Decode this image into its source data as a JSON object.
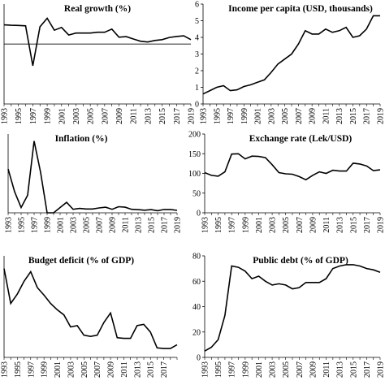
{
  "chart_data": [
    {
      "type": "line",
      "title": "Real growth (%)",
      "color": "#000000",
      "categories": [
        "1993",
        null,
        "1995",
        null,
        "1997",
        null,
        "1999",
        null,
        "2001",
        null,
        "2003",
        null,
        "2005",
        null,
        "2007",
        null,
        "2009",
        null,
        "2011",
        null,
        "2013",
        null,
        "2015",
        null,
        "2017",
        null,
        "2019"
      ],
      "values": [
        9.6,
        9.4,
        9.3,
        9.1,
        -10.9,
        8.6,
        12.9,
        6.9,
        8.3,
        4.5,
        5.5,
        5.5,
        5.5,
        5.9,
        5.9,
        7.5,
        3.4,
        3.7,
        2.5,
        1.4,
        1.0,
        1.8,
        2.2,
        3.3,
        3.8,
        4.1,
        2.2
      ],
      "ylim": [
        -30,
        20
      ]
    },
    {
      "type": "line",
      "title": "Income per capita (USD, thousands)",
      "color": "#000000",
      "categories": [
        "1993",
        null,
        "1995",
        null,
        "1997",
        null,
        "1999",
        null,
        "2001",
        null,
        "2003",
        null,
        "2005",
        null,
        "2007",
        null,
        "2009",
        null,
        "2011",
        null,
        "2013",
        null,
        "2015",
        null,
        "2017",
        null,
        "2019"
      ],
      "values": [
        0.6,
        0.8,
        1.0,
        1.1,
        0.8,
        0.85,
        1.05,
        1.15,
        1.3,
        1.45,
        1.9,
        2.4,
        2.7,
        3.0,
        3.6,
        4.4,
        4.2,
        4.2,
        4.5,
        4.3,
        4.4,
        4.6,
        4.0,
        4.1,
        4.5,
        5.3,
        5.3
      ],
      "ylim": [
        0,
        6
      ],
      "yticks": [
        0,
        1,
        2,
        3,
        4,
        5,
        6
      ]
    },
    {
      "type": "line",
      "title": "Inflation (%)",
      "color": "#000000",
      "categories": [
        "1993",
        null,
        "1995",
        null,
        "1997",
        null,
        "1999",
        null,
        "2001",
        null,
        "2003",
        null,
        "2005",
        null,
        "2007",
        null,
        "2009",
        null,
        "2011",
        null,
        "2013",
        null,
        "2015",
        null,
        "2017",
        null,
        "2019"
      ],
      "values": [
        25,
        12,
        3,
        10,
        41,
        23,
        0,
        0,
        3,
        6,
        2,
        2.5,
        2.2,
        2.2,
        2.8,
        3.2,
        2,
        3.5,
        3.2,
        2,
        1.8,
        1.5,
        1.8,
        1.2,
        1.9,
        1.9,
        1.4
      ],
      "ylim": [
        0,
        45
      ]
    },
    {
      "type": "line",
      "title": "Exchange rate (Lek/USD)",
      "color": "#000000",
      "categories": [
        "1993",
        null,
        "1995",
        null,
        "1997",
        null,
        "1999",
        null,
        "2001",
        null,
        "2003",
        null,
        "2005",
        null,
        "2007",
        null,
        "2009",
        null,
        "2011",
        null,
        "2013",
        null,
        "2015",
        null,
        "2017",
        null,
        "2019"
      ],
      "values": [
        102,
        95,
        93,
        104,
        149,
        150,
        137,
        144,
        143,
        140,
        122,
        102,
        99,
        98,
        92,
        84,
        95,
        104,
        100,
        108,
        106,
        106,
        126,
        124,
        119,
        107,
        109
      ],
      "ylim": [
        0,
        200
      ],
      "yticks": [
        0,
        50,
        100,
        150,
        200
      ]
    },
    {
      "type": "line",
      "title": "Budget deficit (% of GDP)",
      "color": "#000000",
      "categories": [
        "1993",
        null,
        "1995",
        null,
        "1997",
        null,
        "1999",
        null,
        "2001",
        null,
        "2003",
        null,
        "2005",
        null,
        "2007",
        null,
        "2009",
        null,
        "2011",
        null,
        "2013",
        null,
        "2015",
        null,
        "2017",
        null,
        null
      ],
      "values": [
        14,
        8.5,
        10,
        12,
        13.5,
        11,
        9.8,
        8.5,
        7.5,
        6.7,
        4.8,
        5.0,
        3.5,
        3.3,
        3.5,
        5.5,
        7.0,
        3.1,
        3.0,
        3.0,
        5.0,
        5.2,
        4.0,
        1.5,
        1.4,
        1.4,
        2.0
      ],
      "ylim": [
        0,
        16
      ]
    },
    {
      "type": "line",
      "title": "Public debt (% of GDP)",
      "color": "#000000",
      "categories": [
        "1993",
        null,
        "1995",
        null,
        "1997",
        null,
        "1999",
        null,
        "2001",
        null,
        "2003",
        null,
        "2005",
        null,
        "2007",
        null,
        "2009",
        null,
        "2011",
        null,
        "2013",
        null,
        "2015",
        null,
        "2017",
        null,
        "2019"
      ],
      "values": [
        5,
        8,
        14,
        33,
        72,
        71,
        68,
        62,
        64,
        60,
        57,
        58,
        57,
        54,
        55,
        59,
        59,
        59,
        62,
        70,
        72,
        73,
        73,
        72,
        70,
        69,
        67
      ],
      "ylim": [
        0,
        80
      ],
      "yticks": [
        0,
        20,
        40,
        60,
        80
      ]
    }
  ]
}
